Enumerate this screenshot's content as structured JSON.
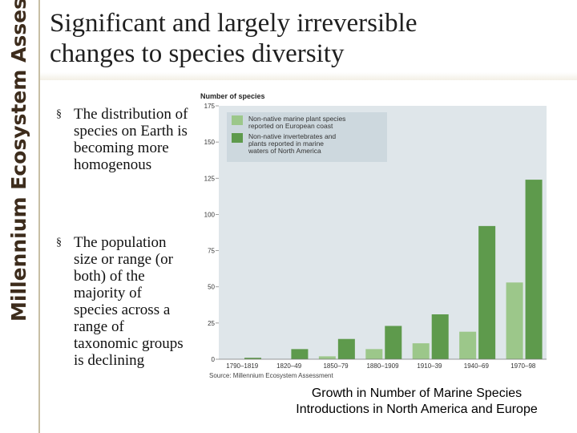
{
  "sidebar": {
    "brand": "Millennium Ecosystem Assessment"
  },
  "title": {
    "line1": "Significant and largely irreversible",
    "line2": "changes to species diversity"
  },
  "bullets": [
    {
      "marker": "§",
      "text": "The distribution of species on Earth is becoming more homogenous"
    },
    {
      "marker": "§",
      "text": "The population size or range (or both) of the majority of species across a range of taxonomic groups is declining"
    }
  ],
  "caption": {
    "line1": "Growth in Number of Marine Species",
    "line2": "Introductions in North America and Europe"
  },
  "colors": {
    "light_bar": "#9cc78a",
    "dark_bar": "#5e9a4c",
    "plot_bg": "#dfe6ea",
    "sidebar_text": "#3d2c1c"
  },
  "chart_data": {
    "type": "bar",
    "ylabel": "Number of species",
    "source": "Source: Millennium Ecosystem Assessment",
    "ylim": [
      0,
      175
    ],
    "yticks": [
      0,
      25,
      50,
      75,
      100,
      125,
      150,
      175
    ],
    "categories": [
      "1790–1819",
      "1820–49",
      "1850–79",
      "1880–1909",
      "1910–39",
      "1940–69",
      "1970–98"
    ],
    "series": [
      {
        "name": "Non-native marine plant species reported on European coast",
        "values": [
          0,
          0,
          2,
          7,
          11,
          19,
          53
        ]
      },
      {
        "name": "Non-native invertebrates and plants reported in marine waters of North America",
        "values": [
          1,
          7,
          14,
          23,
          31,
          92,
          124
        ]
      }
    ],
    "legend": [
      "Non-native marine plant species",
      "reported on European coast",
      "Non-native invertebrates and",
      "plants reported in marine",
      "waters of North America"
    ],
    "grid": false,
    "legend_position": "top-left"
  }
}
